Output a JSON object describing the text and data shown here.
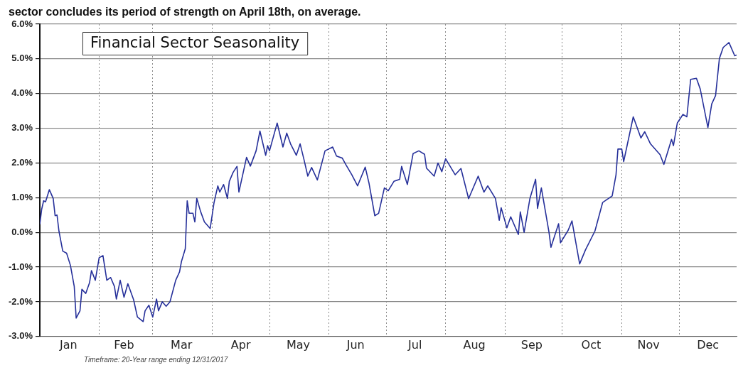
{
  "chart_data": {
    "type": "line",
    "title": "Financial Sector Seasonality",
    "annotations": [
      "sector concludes its period of strength on April 18th, on average.",
      "Timeframe: 20-Year range ending 12/31/2017"
    ],
    "x": [
      "--01-01",
      "--01-02",
      "--01-03",
      "--01-04",
      "--01-06",
      "--01-08",
      "--01-09",
      "--01-10",
      "--01-11",
      "--01-13",
      "--01-15",
      "--01-17",
      "--01-19",
      "--01-20",
      "--01-22",
      "--01-23",
      "--01-25",
      "--01-27",
      "--01-28",
      "--01-30",
      "--02-01",
      "--02-03",
      "--02-05",
      "--02-07",
      "--02-09",
      "--02-10",
      "--02-12",
      "--02-14",
      "--02-16",
      "--02-19",
      "--02-21",
      "--02-24",
      "--02-25",
      "--02-27",
      "--03-01",
      "--03-03",
      "--03-04",
      "--03-06",
      "--03-08",
      "--03-10",
      "--03-13",
      "--03-15",
      "--03-16",
      "--03-18",
      "--03-19",
      "--03-20",
      "--03-22",
      "--03-23",
      "--03-24",
      "--03-26",
      "--03-28",
      "--03-31",
      "--04-02",
      "--04-04",
      "--04-05",
      "--04-07",
      "--04-09",
      "--04-10",
      "--04-12",
      "--04-14",
      "--04-15",
      "--04-19",
      "--04-21",
      "--04-24",
      "--04-26",
      "--04-29",
      "--04-30",
      "--05-01",
      "--05-05",
      "--05-08",
      "--05-10",
      "--05-12",
      "--05-15",
      "--05-17",
      "--05-19",
      "--05-21",
      "--05-23",
      "--05-26",
      "--05-30",
      "--06-03",
      "--06-05",
      "--06-08",
      "--06-10",
      "--06-13",
      "--06-16",
      "--06-20",
      "--06-22",
      "--06-25",
      "--06-27",
      "--06-30",
      "--07-02",
      "--07-05",
      "--07-08",
      "--07-09",
      "--07-12",
      "--07-15",
      "--07-18",
      "--07-21",
      "--07-22",
      "--07-26",
      "--07-28",
      "--07-30",
      "--08-01",
      "--08-06",
      "--08-09",
      "--08-13",
      "--08-18",
      "--08-21",
      "--08-23",
      "--08-27",
      "--08-29",
      "--08-30",
      "--09-02",
      "--09-04",
      "--09-08",
      "--09-09",
      "--09-11",
      "--09-14",
      "--09-17",
      "--09-18",
      "--09-20",
      "--09-24",
      "--09-25",
      "--09-29",
      "--09-30",
      "--10-04",
      "--10-06",
      "--10-10",
      "--10-13",
      "--10-18",
      "--10-22",
      "--10-27",
      "--10-29",
      "--10-30",
      "--11-01",
      "--11-02",
      "--11-07",
      "--11-11",
      "--11-13",
      "--11-16",
      "--11-21",
      "--11-23",
      "--11-27",
      "--11-28",
      "--11-30",
      "--12-03",
      "--12-05",
      "--12-07",
      "--12-10",
      "--12-12",
      "--12-16",
      "--12-18",
      "--12-20",
      "--12-22",
      "--12-24",
      "--12-27",
      "--12-30",
      "--12-31"
    ],
    "series": [
      {
        "color": "#26309a",
        "values": [
          0.23,
          0.67,
          0.91,
          0.88,
          1.23,
          0.98,
          0.48,
          0.5,
          0.04,
          -0.54,
          -0.6,
          -0.95,
          -1.56,
          -2.47,
          -2.26,
          -1.64,
          -1.76,
          -1.45,
          -1.1,
          -1.38,
          -0.73,
          -0.67,
          -1.38,
          -1.3,
          -1.56,
          -1.92,
          -1.38,
          -1.87,
          -1.48,
          -1.94,
          -2.44,
          -2.57,
          -2.26,
          -2.1,
          -2.44,
          -1.92,
          -2.26,
          -2.0,
          -2.13,
          -2.0,
          -1.38,
          -1.14,
          -0.84,
          -0.47,
          0.91,
          0.55,
          0.55,
          0.3,
          0.98,
          0.6,
          0.3,
          0.11,
          0.85,
          1.34,
          1.16,
          1.38,
          0.98,
          1.47,
          1.73,
          1.9,
          1.16,
          2.16,
          1.91,
          2.35,
          2.92,
          2.22,
          2.5,
          2.35,
          3.15,
          2.46,
          2.86,
          2.55,
          2.22,
          2.55,
          2.1,
          1.62,
          1.87,
          1.51,
          2.35,
          2.46,
          2.2,
          2.14,
          1.94,
          1.66,
          1.34,
          1.88,
          1.41,
          0.48,
          0.55,
          1.28,
          1.2,
          1.47,
          1.53,
          1.9,
          1.38,
          2.27,
          2.35,
          2.25,
          1.85,
          1.62,
          2.0,
          1.75,
          2.12,
          1.66,
          1.84,
          0.97,
          1.62,
          1.16,
          1.34,
          0.98,
          0.35,
          0.71,
          0.13,
          0.45,
          -0.06,
          0.59,
          0.0,
          0.97,
          1.53,
          0.69,
          1.28,
          0.0,
          -0.43,
          0.25,
          -0.3,
          0.06,
          0.33,
          -0.91,
          -0.51,
          0.04,
          0.86,
          1.05,
          1.66,
          2.4,
          2.4,
          2.04,
          3.33,
          2.72,
          2.9,
          2.55,
          2.24,
          1.96,
          2.68,
          2.5,
          3.15,
          3.4,
          3.33,
          4.41,
          4.44,
          4.13,
          3.02,
          3.7,
          3.94,
          5.01,
          5.33,
          5.47,
          5.09,
          5.11
        ]
      }
    ],
    "xlim": [
      "--01-01",
      "--12-31"
    ],
    "xticks": [
      {
        "value": "--02-01",
        "label": null
      },
      {
        "value": "--03-01",
        "label": null
      },
      {
        "value": "--04-01",
        "label": null
      },
      {
        "value": "--05-01",
        "label": null
      },
      {
        "value": "--06-01",
        "label": null
      },
      {
        "value": "--07-01",
        "label": null
      },
      {
        "value": "--08-01",
        "label": null
      },
      {
        "value": "--09-01",
        "label": null
      },
      {
        "value": "--10-01",
        "label": null
      },
      {
        "value": "--11-01",
        "label": null
      },
      {
        "value": "--12-01",
        "label": null
      },
      {
        "value": "--01-16",
        "label": "Jan"
      },
      {
        "value": "--02-14",
        "label": "Feb"
      },
      {
        "value": "--03-16",
        "label": "Mar"
      },
      {
        "value": "--04-16",
        "label": "Apr"
      },
      {
        "value": "--05-16",
        "label": "May"
      },
      {
        "value": "--06-15",
        "label": "Jun"
      },
      {
        "value": "--07-16",
        "label": "Jul"
      },
      {
        "value": "--08-16",
        "label": "Aug"
      },
      {
        "value": "--09-15",
        "label": "Sep"
      },
      {
        "value": "--10-16",
        "label": "Oct"
      },
      {
        "value": "--11-15",
        "label": "Nov"
      },
      {
        "value": "--12-16",
        "label": "Dec"
      }
    ],
    "ylim": [
      -3,
      6
    ],
    "yticks": [
      {
        "value": -3,
        "label": "-3.0%"
      },
      {
        "value": -2,
        "label": "-2.0%"
      },
      {
        "value": -1,
        "label": "-1.0%"
      },
      {
        "value": 0,
        "label": "0.0%"
      },
      {
        "value": 1,
        "label": "1.0%"
      },
      {
        "value": 2,
        "label": "2.0%"
      },
      {
        "value": 3,
        "label": "3.0%"
      },
      {
        "value": 4,
        "label": "4.0%"
      },
      {
        "value": 5,
        "label": "5.0%"
      },
      {
        "value": 6,
        "label": "6.0%"
      }
    ],
    "grid": true,
    "legend": false,
    "marker": "none",
    "line_style": "solid"
  }
}
